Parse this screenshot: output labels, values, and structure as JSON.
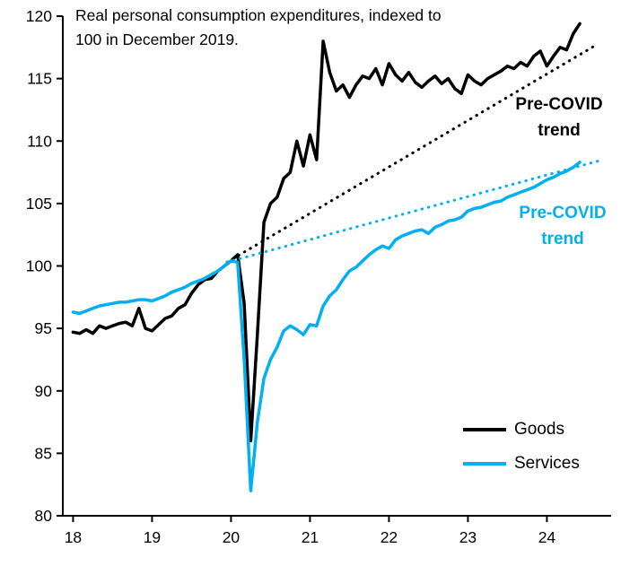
{
  "title": {
    "line1": "Real personal consumption expenditures, indexed to",
    "line2": "100 in December 2019."
  },
  "annotations": {
    "goods_trend_label": "Pre-COVID trend",
    "services_trend_label": "Pre-COVID trend"
  },
  "legend": [
    {
      "label": "Goods",
      "color": "#000000"
    },
    {
      "label": "Services",
      "color": "#00B0F0"
    }
  ],
  "colors": {
    "goods": "#000000",
    "services": "#00B0F0",
    "axis": "#000000"
  },
  "chart_data": {
    "type": "line",
    "title": "Real personal consumption expenditures, indexed to 100 in December 2019.",
    "xlabel": "",
    "ylabel": "",
    "xlim": [
      17.87,
      24.8
    ],
    "ylim": [
      80,
      120
    ],
    "x_ticks": [
      18,
      19,
      20,
      21,
      22,
      23,
      24
    ],
    "y_ticks": [
      80,
      85,
      90,
      95,
      100,
      105,
      110,
      115,
      120
    ],
    "grid": false,
    "legend_position": "lower right",
    "series": [
      {
        "name": "Goods",
        "color": "#000000",
        "style": "solid",
        "width": 3.5,
        "x_start": 18.0,
        "x_step": 0.083333,
        "values": [
          94.7,
          94.6,
          94.9,
          94.6,
          95.2,
          95.0,
          95.2,
          95.4,
          95.5,
          95.2,
          96.6,
          95.0,
          94.8,
          95.3,
          95.8,
          96.0,
          96.6,
          96.9,
          97.8,
          98.5,
          98.9,
          99.0,
          99.6,
          100.0,
          100.4,
          100.9,
          97.0,
          86.0,
          94.5,
          103.5,
          105.0,
          105.5,
          107.0,
          107.5,
          110.0,
          108.0,
          110.5,
          108.5,
          118.0,
          115.5,
          114.0,
          114.5,
          113.5,
          114.5,
          115.2,
          115.0,
          115.8,
          114.5,
          116.2,
          115.3,
          114.8,
          115.5,
          114.7,
          114.3,
          114.8,
          115.2,
          114.6,
          115.0,
          114.2,
          113.8,
          115.3,
          114.8,
          114.5,
          115.0,
          115.3,
          115.6,
          116.0,
          115.8,
          116.3,
          116.0,
          116.8,
          117.2,
          116.0,
          116.8,
          117.5,
          117.3,
          118.6,
          119.4
        ]
      },
      {
        "name": "Services",
        "color": "#00B0F0",
        "style": "solid",
        "width": 3.5,
        "x_start": 18.0,
        "x_step": 0.083333,
        "values": [
          96.3,
          96.2,
          96.4,
          96.6,
          96.8,
          96.9,
          97.0,
          97.1,
          97.1,
          97.2,
          97.3,
          97.3,
          97.2,
          97.4,
          97.6,
          97.9,
          98.1,
          98.3,
          98.6,
          98.8,
          99.0,
          99.3,
          99.6,
          100.0,
          100.4,
          100.3,
          92.5,
          82.0,
          87.5,
          91.0,
          92.5,
          93.5,
          94.8,
          95.2,
          94.9,
          94.5,
          95.3,
          95.2,
          96.8,
          97.6,
          98.1,
          98.9,
          99.6,
          99.9,
          100.4,
          100.9,
          101.3,
          101.6,
          101.4,
          102.1,
          102.4,
          102.6,
          102.8,
          102.9,
          102.6,
          103.1,
          103.3,
          103.6,
          103.7,
          103.9,
          104.4,
          104.6,
          104.7,
          104.9,
          105.1,
          105.2,
          105.5,
          105.7,
          105.9,
          106.1,
          106.3,
          106.6,
          106.9,
          107.1,
          107.4,
          107.6,
          107.9,
          108.3
        ]
      },
      {
        "name": "Goods pre-COVID trend",
        "color": "#000000",
        "style": "dotted",
        "width": 3,
        "x": [
          19.95,
          24.6
        ],
        "values": [
          100.3,
          117.6
        ]
      },
      {
        "name": "Services pre-COVID trend",
        "color": "#00B0F0",
        "style": "dotted",
        "width": 3,
        "x": [
          19.95,
          24.65
        ],
        "values": [
          100.3,
          108.4
        ]
      }
    ]
  }
}
